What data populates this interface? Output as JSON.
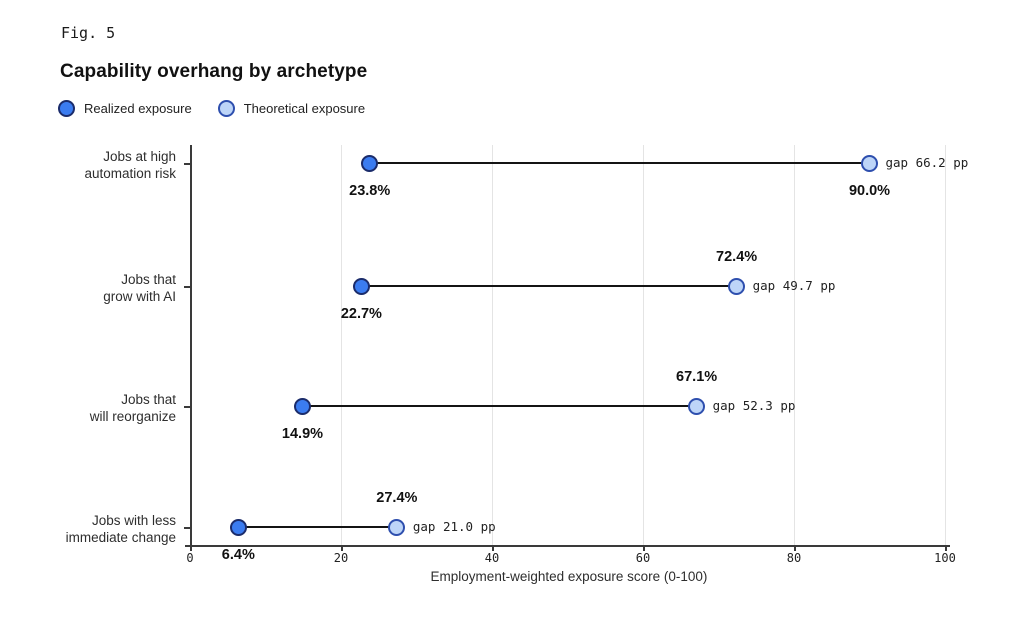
{
  "figure": {
    "label": "Fig. 5",
    "title": "Capability overhang by archetype"
  },
  "legend": [
    {
      "label": "Realized exposure",
      "fill": "#3b7cf0",
      "border": "#1b2c6b"
    },
    {
      "label": "Theoretical exposure",
      "fill": "#bdd5f8",
      "border": "#2e4fae"
    }
  ],
  "chart_data": {
    "type": "dumbbell",
    "title": "Capability overhang by archetype",
    "categories": [
      [
        "Jobs at high",
        "automation risk"
      ],
      [
        "Jobs that",
        "grow with AI"
      ],
      [
        "Jobs that",
        "will reorganize"
      ],
      [
        "Jobs with less",
        "immediate change"
      ]
    ],
    "series": [
      {
        "name": "Realized exposure",
        "values": [
          23.8,
          22.7,
          14.9,
          6.4
        ]
      },
      {
        "name": "Theoretical exposure",
        "values": [
          90.0,
          72.4,
          67.1,
          27.4
        ]
      }
    ],
    "realized_labels": [
      "23.8%",
      "22.7%",
      "14.9%",
      "6.4%"
    ],
    "theoretical_labels": [
      "90.0%",
      "72.4%",
      "67.1%",
      "27.4%"
    ],
    "theoretical_label_position": [
      "below",
      "above",
      "above",
      "above"
    ],
    "gap_labels": [
      "gap 66.2 pp",
      "gap 49.7 pp",
      "gap 52.3 pp",
      "gap 21.0 pp"
    ],
    "xlabel": "Employment-weighted exposure score (0-100)",
    "xlim": [
      0,
      100
    ],
    "xticks": [
      0,
      20,
      40,
      60,
      80,
      100
    ],
    "grid": "vertical",
    "colors": {
      "realized_fill": "#3b7cf0",
      "realized_border": "#1b2c6b",
      "theoretical_fill": "#bdd5f8",
      "theoretical_border": "#2e4fae",
      "connector": "#141414",
      "gridline": "#e4e4e4",
      "axis": "#3a3a3a"
    }
  }
}
